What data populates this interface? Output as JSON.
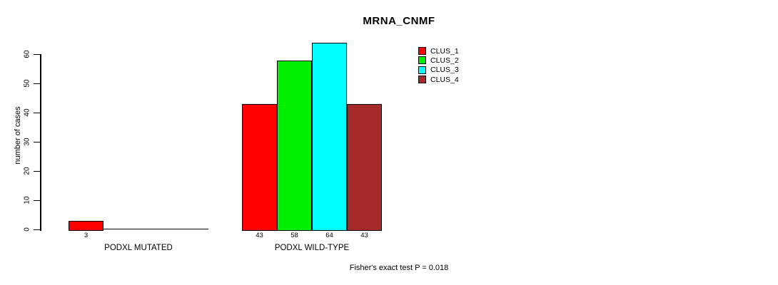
{
  "chart_data": {
    "type": "bar",
    "title": "MRNA_CNMF",
    "ylabel": "number of cases",
    "xlabel": "",
    "ylim": [
      0,
      60
    ],
    "yticks": [
      0,
      10,
      20,
      30,
      40,
      50,
      60
    ],
    "categories": [
      "PODXL MUTATED",
      "PODXL WILD-TYPE"
    ],
    "series": [
      {
        "name": "CLUS_1",
        "color": "#ff0000",
        "values": [
          3,
          43
        ]
      },
      {
        "name": "CLUS_2",
        "color": "#00ee00",
        "values": [
          0,
          58
        ]
      },
      {
        "name": "CLUS_3",
        "color": "#00ffff",
        "values": [
          0,
          64
        ]
      },
      {
        "name": "CLUS_4",
        "color": "#a52a2a",
        "values": [
          0,
          43
        ]
      }
    ],
    "bar_value_labels_shown": true,
    "legend_position": "top-right",
    "grid": false,
    "annotation": "Fisher's exact test P = 0.018"
  }
}
